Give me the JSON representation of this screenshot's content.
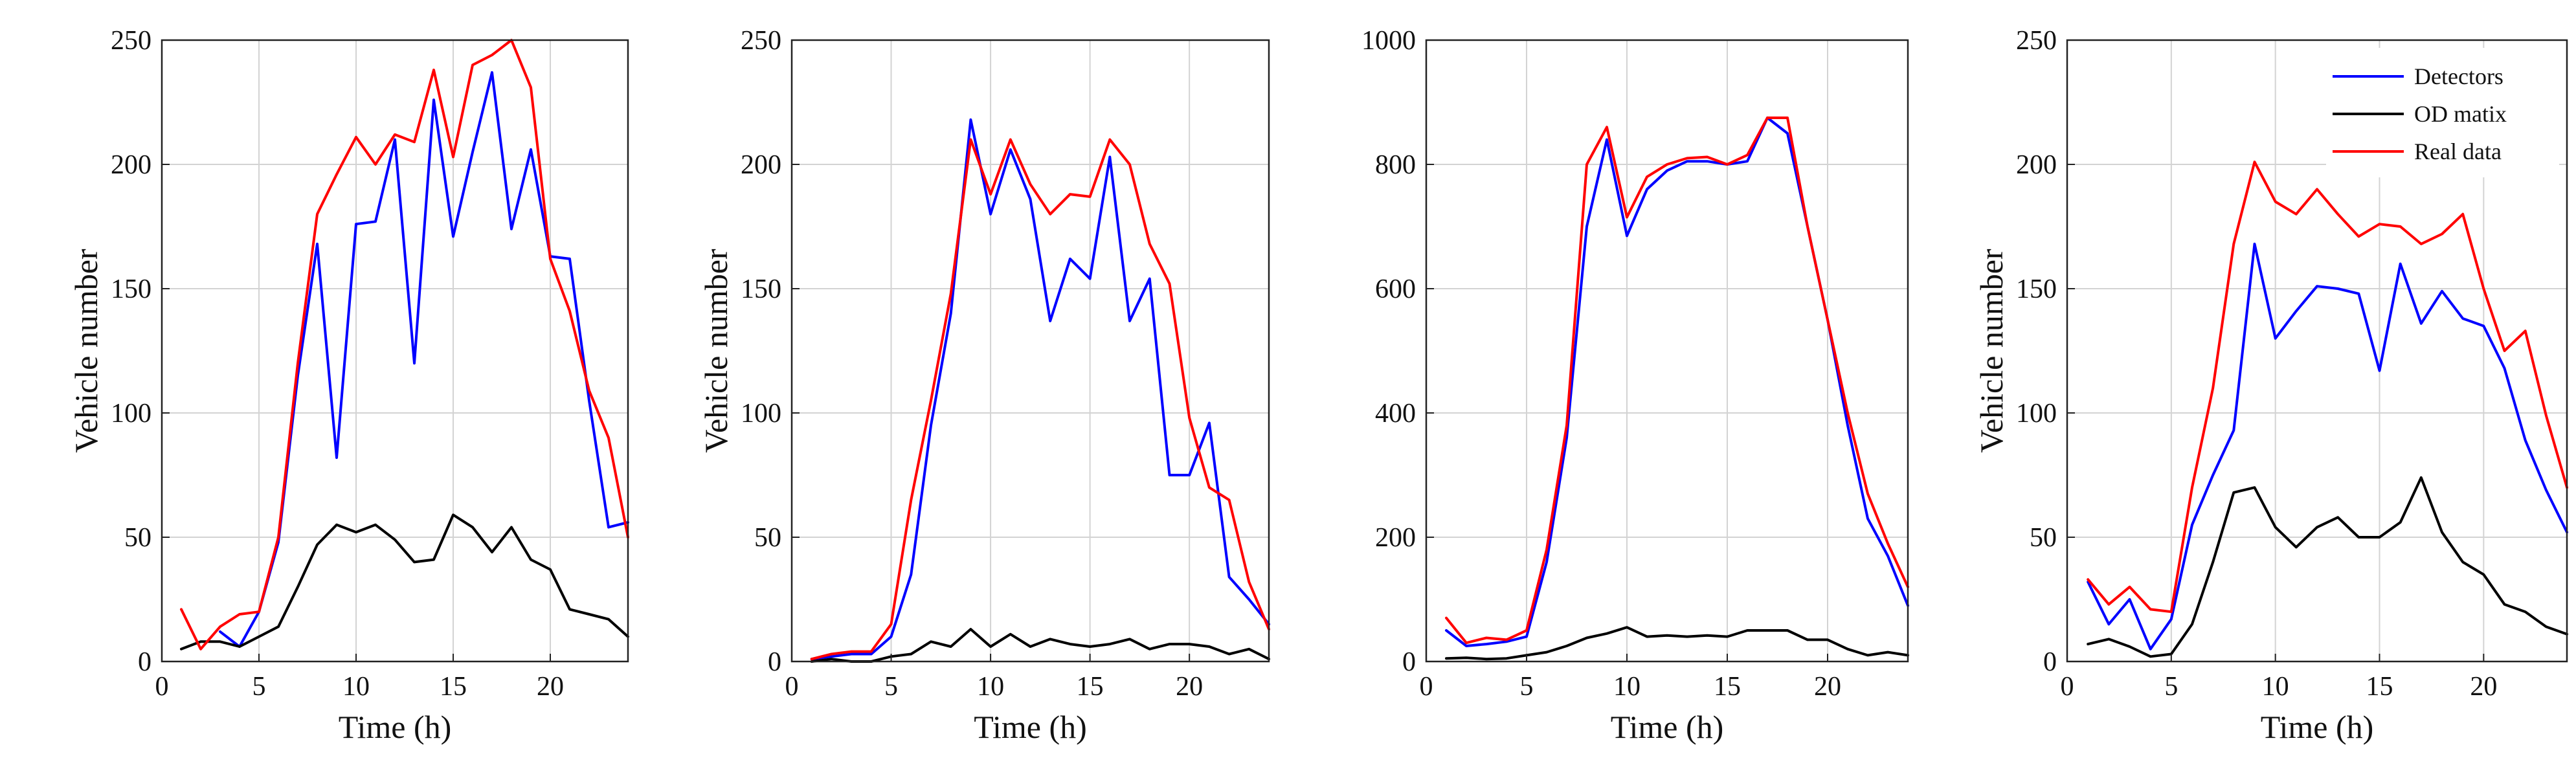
{
  "chart_data": [
    {
      "type": "line",
      "title": "",
      "xlabel": "Time (h)",
      "ylabel": "Vehicle number",
      "xlim": [
        0,
        24
      ],
      "ylim": [
        0,
        250
      ],
      "xticks": [
        "0",
        "5",
        "10",
        "15",
        "20"
      ],
      "yticks": [
        "0",
        "50",
        "100",
        "150",
        "200",
        "250"
      ],
      "grid": true,
      "x": [
        1,
        2,
        3,
        4,
        5,
        6,
        7,
        8,
        9,
        10,
        11,
        12,
        13,
        14,
        15,
        16,
        17,
        18,
        19,
        20,
        21,
        22,
        23,
        24
      ],
      "series": [
        {
          "name": "Detectors",
          "color": "#0000ff",
          "values": [
            null,
            null,
            12,
            6,
            20,
            48,
            115,
            168,
            82,
            176,
            177,
            210,
            120,
            226,
            171,
            205,
            237,
            174,
            206,
            163,
            162,
            105,
            54,
            56
          ]
        },
        {
          "name": "OD matix",
          "color": "#000000",
          "values": [
            5,
            8,
            8,
            6,
            10,
            14,
            30,
            47,
            55,
            52,
            55,
            49,
            40,
            41,
            59,
            54,
            44,
            54,
            41,
            37,
            21,
            19,
            17,
            10
          ]
        },
        {
          "name": "Real data",
          "color": "#ff0000",
          "values": [
            21,
            5,
            14,
            19,
            20,
            50,
            120,
            180,
            196,
            211,
            200,
            212,
            209,
            238,
            203,
            240,
            244,
            250,
            231,
            162,
            141,
            109,
            90,
            50
          ]
        }
      ]
    },
    {
      "type": "line",
      "title": "",
      "xlabel": "Time (h)",
      "ylabel": "Vehicle number",
      "xlim": [
        0,
        24
      ],
      "ylim": [
        0,
        250
      ],
      "xticks": [
        "0",
        "5",
        "10",
        "15",
        "20"
      ],
      "yticks": [
        "0",
        "50",
        "100",
        "150",
        "200",
        "250"
      ],
      "grid": true,
      "x": [
        1,
        2,
        3,
        4,
        5,
        6,
        7,
        8,
        9,
        10,
        11,
        12,
        13,
        14,
        15,
        16,
        17,
        18,
        19,
        20,
        21,
        22,
        23,
        24
      ],
      "series": [
        {
          "name": "Detectors",
          "color": "#0000ff",
          "values": [
            1,
            2,
            3,
            3,
            10,
            35,
            95,
            140,
            218,
            180,
            206,
            186,
            137,
            162,
            154,
            203,
            137,
            154,
            75,
            75,
            96,
            34,
            25,
            15
          ]
        },
        {
          "name": "OD matix",
          "color": "#000000",
          "values": [
            0,
            1,
            0,
            0,
            2,
            3,
            8,
            6,
            13,
            6,
            11,
            6,
            9,
            7,
            6,
            7,
            9,
            5,
            7,
            7,
            6,
            3,
            5,
            1
          ]
        },
        {
          "name": "Real data",
          "color": "#ff0000",
          "values": [
            1,
            3,
            4,
            4,
            15,
            65,
            105,
            148,
            210,
            188,
            210,
            192,
            180,
            188,
            187,
            210,
            200,
            168,
            152,
            98,
            70,
            65,
            32,
            13
          ]
        }
      ]
    },
    {
      "type": "line",
      "title": "",
      "xlabel": "Time (h)",
      "ylabel": "",
      "xlim": [
        0,
        24
      ],
      "ylim": [
        0,
        1000
      ],
      "xticks": [
        "0",
        "5",
        "10",
        "15",
        "20"
      ],
      "yticks": [
        "0",
        "200",
        "400",
        "600",
        "800",
        "1000"
      ],
      "grid": true,
      "x": [
        1,
        2,
        3,
        4,
        5,
        6,
        7,
        8,
        9,
        10,
        11,
        12,
        13,
        14,
        15,
        16,
        17,
        18,
        19,
        20,
        21,
        22,
        23,
        24
      ],
      "series": [
        {
          "name": "Detectors",
          "color": "#0000ff",
          "values": [
            50,
            25,
            28,
            32,
            40,
            160,
            360,
            700,
            840,
            685,
            760,
            790,
            805,
            805,
            800,
            805,
            875,
            850,
            700,
            550,
            380,
            230,
            170,
            90
          ]
        },
        {
          "name": "OD matix",
          "color": "#000000",
          "values": [
            5,
            6,
            4,
            5,
            10,
            15,
            25,
            38,
            45,
            55,
            40,
            42,
            40,
            42,
            40,
            50,
            50,
            50,
            35,
            35,
            20,
            10,
            15,
            10
          ]
        },
        {
          "name": "Real data",
          "color": "#ff0000",
          "values": [
            70,
            30,
            38,
            35,
            50,
            180,
            380,
            800,
            860,
            715,
            780,
            800,
            810,
            812,
            800,
            815,
            875,
            875,
            700,
            550,
            400,
            270,
            190,
            120
          ]
        }
      ]
    },
    {
      "type": "line",
      "title": "",
      "xlabel": "Time (h)",
      "ylabel": "Vehicle number",
      "xlim": [
        0,
        24
      ],
      "ylim": [
        0,
        250
      ],
      "xticks": [
        "0",
        "5",
        "10",
        "15",
        "20"
      ],
      "yticks": [
        "0",
        "50",
        "100",
        "150",
        "200",
        "250"
      ],
      "grid": true,
      "legend": {
        "placement": "top-right",
        "entries": [
          "Detectors",
          "OD matix",
          "Real data"
        ]
      },
      "x": [
        1,
        2,
        3,
        4,
        5,
        6,
        7,
        8,
        9,
        10,
        11,
        12,
        13,
        14,
        15,
        16,
        17,
        18,
        19,
        20,
        21,
        22,
        23,
        24
      ],
      "series": [
        {
          "name": "Detectors",
          "color": "#0000ff",
          "values": [
            32,
            15,
            25,
            5,
            17,
            55,
            75,
            93,
            168,
            130,
            141,
            151,
            150,
            148,
            117,
            160,
            136,
            149,
            138,
            135,
            118,
            89,
            69,
            52
          ]
        },
        {
          "name": "OD matix",
          "color": "#000000",
          "values": [
            7,
            9,
            6,
            2,
            3,
            15,
            40,
            68,
            70,
            54,
            46,
            54,
            58,
            50,
            50,
            56,
            74,
            52,
            40,
            35,
            23,
            20,
            14,
            11
          ]
        },
        {
          "name": "Real data",
          "color": "#ff0000",
          "values": [
            33,
            23,
            30,
            21,
            20,
            70,
            110,
            168,
            201,
            185,
            180,
            190,
            180,
            171,
            176,
            175,
            168,
            172,
            180,
            150,
            125,
            133,
            99,
            70
          ]
        }
      ]
    }
  ]
}
